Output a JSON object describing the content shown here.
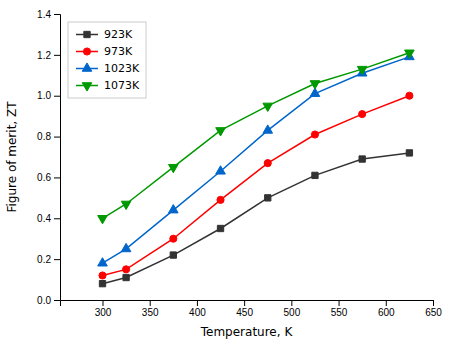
{
  "chart_data": {
    "type": "line",
    "xlabel": "Temperature, K",
    "ylabel": "Figure of merit, ZT",
    "x": [
      300,
      325,
      375,
      425,
      475,
      525,
      575,
      625
    ],
    "series": [
      {
        "name": "923K",
        "color": "#333333",
        "marker": "square",
        "values": [
          0.08,
          0.11,
          0.22,
          0.35,
          0.5,
          0.61,
          0.69,
          0.72
        ]
      },
      {
        "name": "973K",
        "color": "#ff0000",
        "marker": "circle",
        "values": [
          0.12,
          0.15,
          0.3,
          0.49,
          0.67,
          0.81,
          0.91,
          1.0
        ]
      },
      {
        "name": "1023K",
        "color": "#0066cc",
        "marker": "triangle-up",
        "values": [
          0.18,
          0.25,
          0.44,
          0.63,
          0.83,
          1.01,
          1.11,
          1.19
        ]
      },
      {
        "name": "1073K",
        "color": "#009900",
        "marker": "triangle-down",
        "values": [
          0.4,
          0.47,
          0.65,
          0.83,
          0.95,
          1.06,
          1.13,
          1.21
        ]
      }
    ],
    "xlim": [
      255,
      650
    ],
    "ylim": [
      0.0,
      1.4
    ],
    "xticks": [
      300,
      350,
      400,
      450,
      500,
      550,
      600,
      650
    ],
    "yticks": [
      {
        "value": 0.0,
        "label": "0.0"
      },
      0.2,
      0.4,
      0.6,
      0.8,
      {
        "value": 1.0,
        "label": "1.0"
      },
      1.2,
      1.4
    ],
    "legend": "top-left"
  }
}
